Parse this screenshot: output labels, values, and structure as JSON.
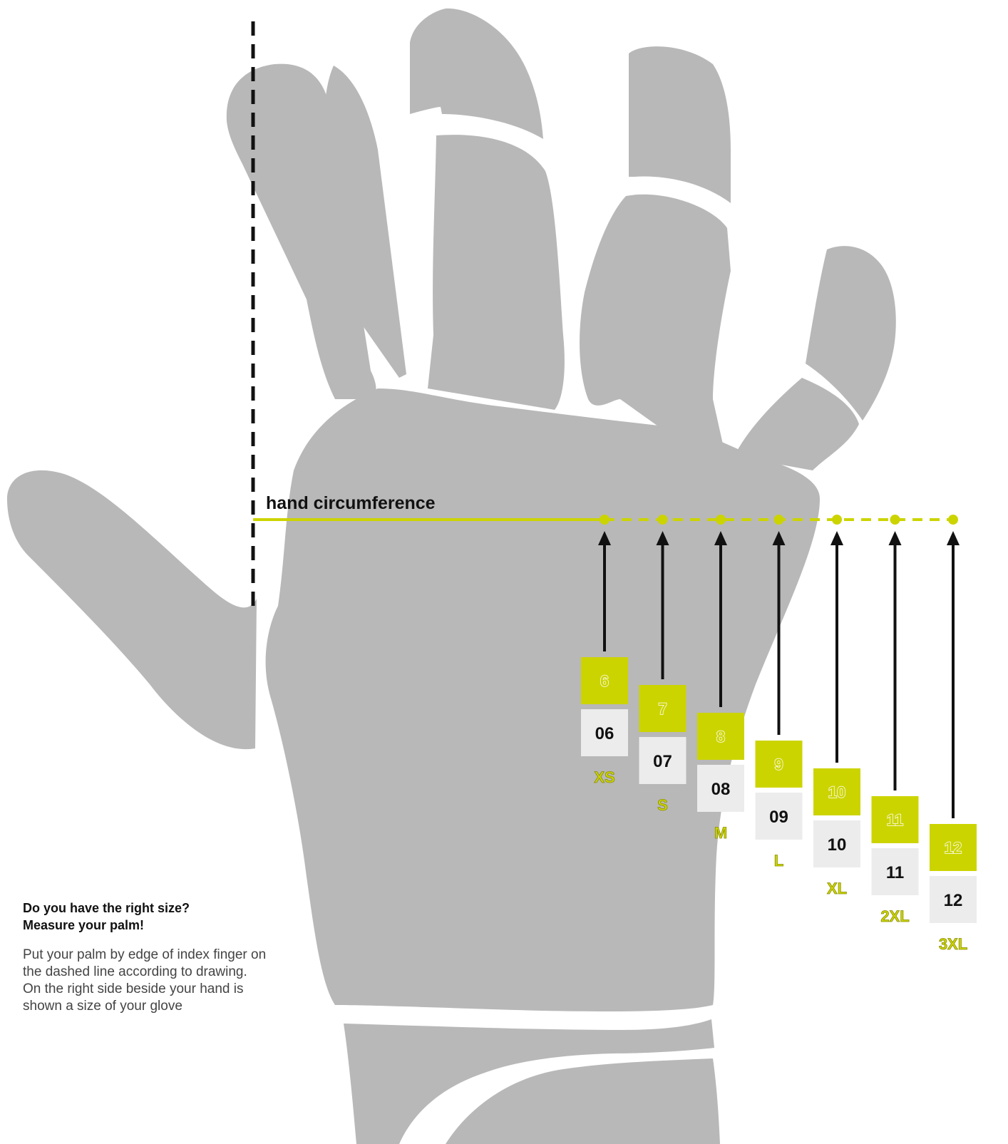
{
  "labels": {
    "circumference": "hand circumference"
  },
  "info": {
    "heading_line1": "Do you have the right size?",
    "heading_line2": "Measure your palm!",
    "body_line1": "Put your palm by edge of index finger on",
    "body_line2": "the dashed line according to drawing.",
    "body_line3": "On the right side beside your hand is",
    "body_line4": "shown a size of your glove"
  },
  "sizes": [
    {
      "num": "6",
      "code": "06",
      "letter": "XS"
    },
    {
      "num": "7",
      "code": "07",
      "letter": "S"
    },
    {
      "num": "8",
      "code": "08",
      "letter": "M"
    },
    {
      "num": "9",
      "code": "09",
      "letter": "L"
    },
    {
      "num": "10",
      "code": "10",
      "letter": "XL"
    },
    {
      "num": "11",
      "code": "11",
      "letter": "2XL"
    },
    {
      "num": "12",
      "code": "12",
      "letter": "3XL"
    }
  ],
  "colors": {
    "hand": "#b8b8b8",
    "accent": "#ccd400",
    "code_bg": "#ececec",
    "arrow": "#111111",
    "guide": "#111111"
  }
}
